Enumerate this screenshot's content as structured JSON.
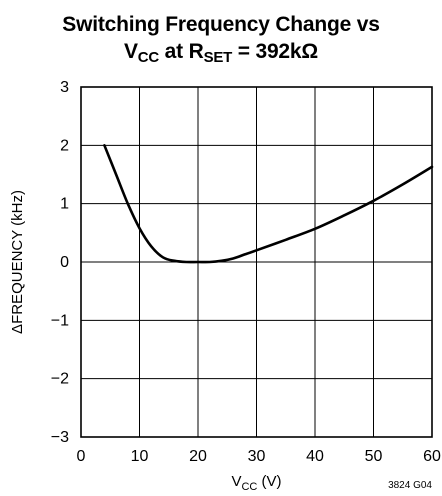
{
  "title": {
    "line1": "Switching Frequency Change vs",
    "line2_parts": {
      "v": "V",
      "v_sub": "CC",
      "mid": " at R",
      "r_sub": "SET",
      "tail": " = 392kΩ"
    }
  },
  "figure_code": "3824 G04",
  "chart_data": {
    "type": "line",
    "title": "Switching Frequency Change vs VCC at RSET = 392kΩ",
    "xlabel": "VCC (V)",
    "xlabel_parts": {
      "main": "V",
      "sub": "CC",
      "tail": " (V)"
    },
    "ylabel": "ΔFREQUENCY (kHz)",
    "xlim": [
      0,
      60
    ],
    "ylim": [
      -3,
      3
    ],
    "xticks": [
      0,
      10,
      20,
      30,
      40,
      50,
      60
    ],
    "yticks": [
      -3,
      -2,
      -1,
      0,
      1,
      2,
      3
    ],
    "xtick_labels": [
      "0",
      "10",
      "20",
      "30",
      "40",
      "50",
      "60"
    ],
    "ytick_labels": [
      "−3",
      "−2",
      "−1",
      "0",
      "1",
      "2",
      "3"
    ],
    "grid": true,
    "series": [
      {
        "x": [
          4,
          6,
          8,
          10,
          12,
          14,
          16,
          18,
          20,
          22,
          24,
          26,
          28,
          30,
          35,
          40,
          45,
          50,
          55,
          60
        ],
        "y": [
          2.0,
          1.5,
          1.0,
          0.58,
          0.27,
          0.08,
          0.02,
          0.0,
          0.0,
          0.0,
          0.02,
          0.06,
          0.13,
          0.2,
          0.38,
          0.57,
          0.8,
          1.05,
          1.33,
          1.63
        ]
      }
    ]
  }
}
